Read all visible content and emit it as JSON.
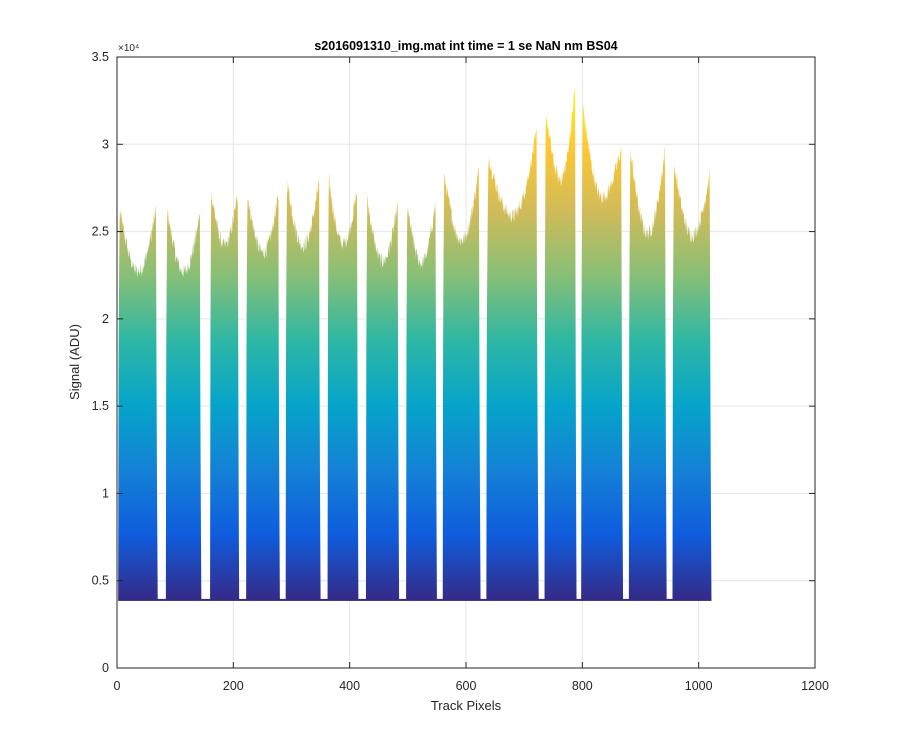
{
  "chart_data": {
    "type": "area",
    "title": "s2016091310_img.mat int time = 1 se  NaN nm BS04",
    "xlabel": "Track Pixels",
    "ylabel": "Signal (ADU)",
    "y_exponent_label": "×10⁴",
    "xlim": [
      0,
      1200
    ],
    "ylim": [
      0,
      35000
    ],
    "x_ticks": [
      0,
      200,
      400,
      600,
      800,
      1000,
      1200
    ],
    "x_tick_labels": [
      "0",
      "200",
      "400",
      "600",
      "800",
      "1000",
      "1200"
    ],
    "y_ticks": [
      0,
      5000,
      10000,
      15000,
      20000,
      25000,
      30000,
      35000
    ],
    "y_tick_labels": [
      "0",
      "0.5",
      "1",
      "1.5",
      "2",
      "2.5",
      "3",
      "3.5"
    ],
    "grid": true,
    "baseline": 3900,
    "colormap": [
      "#352a87",
      "#0f5cdd",
      "#1481d6",
      "#06a4ca",
      "#2eb7a4",
      "#87bf77",
      "#d1bb59",
      "#fec832",
      "#f9fb0e"
    ],
    "segments": [
      {
        "x_start": 2,
        "x_end": 70,
        "peak_left": 26200,
        "min": 22700,
        "peak_right": 26300
      },
      {
        "x_start": 84,
        "x_end": 145,
        "peak_left": 26200,
        "min": 22700,
        "peak_right": 26000
      },
      {
        "x_start": 160,
        "x_end": 210,
        "peak_left": 27300,
        "min": 24200,
        "peak_right": 27300
      },
      {
        "x_start": 222,
        "x_end": 280,
        "peak_left": 27100,
        "min": 23800,
        "peak_right": 27100
      },
      {
        "x_start": 290,
        "x_end": 350,
        "peak_left": 27900,
        "min": 24200,
        "peak_right": 27900
      },
      {
        "x_start": 362,
        "x_end": 415,
        "peak_left": 28000,
        "min": 24300,
        "peak_right": 27400
      },
      {
        "x_start": 428,
        "x_end": 485,
        "peak_left": 26800,
        "min": 23300,
        "peak_right": 26500
      },
      {
        "x_start": 497,
        "x_end": 550,
        "peak_left": 26400,
        "min": 23200,
        "peak_right": 26700
      },
      {
        "x_start": 560,
        "x_end": 625,
        "peak_left": 28200,
        "min": 24500,
        "peak_right": 28600
      },
      {
        "x_start": 635,
        "x_end": 725,
        "peak_left": 29300,
        "min": 25900,
        "peak_right": 30700
      },
      {
        "x_start": 735,
        "x_end": 790,
        "peak_left": 31900,
        "min": 28000,
        "peak_right": 33400
      },
      {
        "x_start": 798,
        "x_end": 870,
        "peak_left": 32200,
        "min": 27000,
        "peak_right": 29800
      },
      {
        "x_start": 880,
        "x_end": 945,
        "peak_left": 29600,
        "min": 24900,
        "peak_right": 29700
      },
      {
        "x_start": 955,
        "x_end": 1022,
        "peak_left": 28900,
        "min": 24800,
        "peak_right": 28300
      }
    ]
  }
}
